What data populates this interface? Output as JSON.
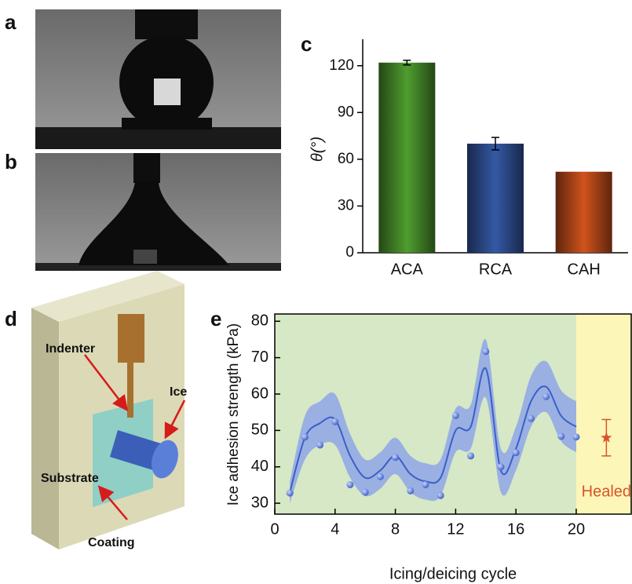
{
  "panel_labels": [
    "a",
    "b",
    "c",
    "d",
    "e"
  ],
  "diagram": {
    "labels": [
      "Indenter",
      "Ice",
      "Substrate",
      "Coating"
    ]
  },
  "chart_data": [
    {
      "type": "bar",
      "categories": [
        "ACA",
        "RCA",
        "CAH"
      ],
      "values": [
        122,
        70,
        52
      ],
      "errors": [
        1.5,
        4,
        null
      ],
      "colors": [
        "#4f9e2f",
        "#3559a6",
        "#d0531c"
      ],
      "y_label": "θ(°)",
      "ylim": [
        0,
        137
      ],
      "yticks": [
        0,
        30,
        60,
        90,
        120
      ]
    },
    {
      "type": "scatter",
      "x_label": "Icing/deicing cycle",
      "y_label": "Ice adhesion strength (kPa)",
      "x": [
        1,
        2,
        3,
        4,
        5,
        6,
        7,
        8,
        9,
        10,
        11,
        12,
        13,
        14,
        15,
        16,
        17,
        18,
        19,
        20
      ],
      "series": [
        {
          "color": "#4a6fd0",
          "values": [
            32.8,
            48.2,
            46,
            52.4,
            35.1,
            33,
            37.3,
            42.6,
            33.4,
            35.1,
            32.1,
            54.1,
            43,
            71.7,
            40,
            43.9,
            53.3,
            59.3,
            48.4,
            48.2
          ]
        }
      ],
      "fit": {
        "color": "#3a5fc8",
        "band_color": "#8fa6e6",
        "values": [
          33,
          48,
          52,
          53,
          43,
          37,
          39,
          43,
          38,
          36,
          37,
          50,
          51,
          67,
          39,
          45,
          58,
          62,
          54,
          51
        ],
        "band_upper": [
          36,
          54,
          58,
          60,
          49,
          42,
          44,
          48,
          43,
          41,
          42,
          56,
          57,
          75,
          45,
          51,
          65,
          69,
          61,
          58
        ],
        "band_lower": [
          30,
          42,
          46,
          46,
          37,
          32,
          34,
          38,
          33,
          31,
          32,
          44,
          45,
          59,
          33,
          39,
          51,
          55,
          47,
          44
        ]
      },
      "healed": {
        "label": "Healed",
        "x": 22,
        "value": 48,
        "error": 5,
        "color": "#d9532b"
      },
      "regions": [
        {
          "x0": 0,
          "x1": 20,
          "color": "#d6e8c6"
        },
        {
          "x0": 20,
          "x1": 23.7,
          "color": "#fcf6b8"
        }
      ],
      "xlim": [
        0,
        23.7
      ],
      "ylim": [
        27,
        82
      ],
      "xticks": [
        0,
        4,
        8,
        12,
        16,
        20
      ],
      "yticks": [
        30,
        40,
        50,
        60,
        70,
        80
      ]
    }
  ]
}
